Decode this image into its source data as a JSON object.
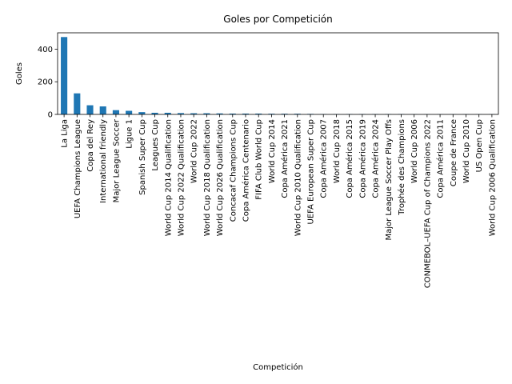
{
  "chart_data": {
    "type": "bar",
    "title": "Goles por Competición",
    "xlabel": "Competición",
    "ylabel": "Goles",
    "ylim": [
      0,
      500
    ],
    "yticks": [
      0,
      200,
      400
    ],
    "grid": false,
    "legend": "none",
    "bar_color": "#1f77b4",
    "categories": [
      "La Liga",
      "UEFA Champions League",
      "Copa del Rey",
      "International friendly",
      "Major League Soccer",
      "Ligue 1",
      "Spanish Super Cup",
      "Leagues Cup",
      "World Cup 2014 Qualification",
      "World Cup 2022 Qualification",
      "World Cup 2022",
      "World Cup 2018 Qualification",
      "World Cup 2026 Qualification",
      "Concacaf Champions Cup",
      "Copa América Centenario",
      "FIFA Club World Cup",
      "World Cup 2014",
      "Copa América 2021",
      "World Cup 2010 Qualification",
      "UEFA European Super Cup",
      "Copa América 2007",
      "World Cup 2018",
      "Copa América 2015",
      "Copa América 2019",
      "Copa América 2024",
      "Major League Soccer Play Offs",
      "Trophée des Champions",
      "World Cup 2006",
      "CONMEBOL–UEFA Cup of Champions 2022",
      "Copa América 2011",
      "Coupe de France",
      "World Cup 2010",
      "US Open Cup",
      "World Cup 2006 Qualification"
    ],
    "values": [
      474,
      129,
      56,
      49,
      26,
      22,
      14,
      10,
      10,
      8,
      7,
      7,
      6,
      5,
      5,
      5,
      4,
      4,
      4,
      3,
      2,
      2,
      2,
      2,
      2,
      2,
      2,
      1,
      1,
      1,
      1,
      1,
      1,
      1
    ]
  }
}
